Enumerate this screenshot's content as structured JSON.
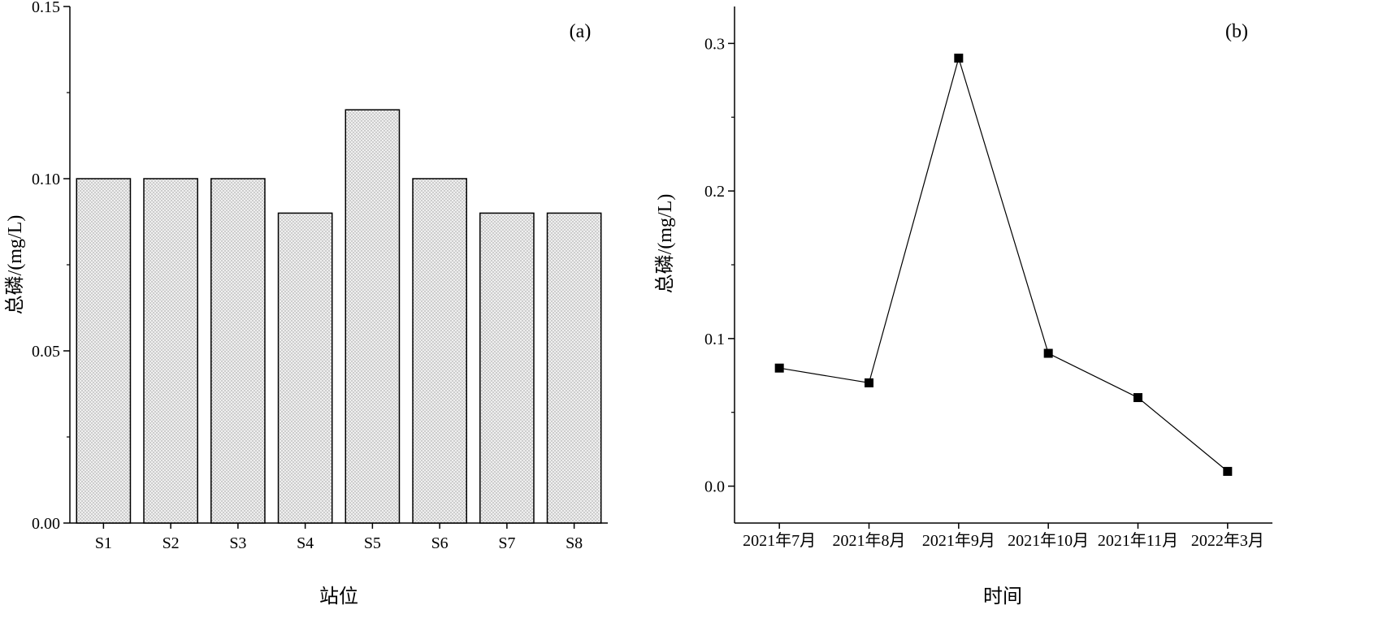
{
  "chart_data": [
    {
      "type": "bar",
      "panel_label": "(a)",
      "categories": [
        "S1",
        "S2",
        "S3",
        "S4",
        "S5",
        "S6",
        "S7",
        "S8"
      ],
      "values": [
        0.1,
        0.1,
        0.1,
        0.09,
        0.12,
        0.1,
        0.09,
        0.09
      ],
      "xlabel": "站位",
      "ylabel": "总磷/(mg/L)",
      "ylim": [
        0,
        0.15
      ],
      "yticks": [
        "0.00",
        "0.05",
        "0.10",
        "0.15"
      ],
      "bar_fill": "#e6e6e6",
      "grid": false
    },
    {
      "type": "line",
      "panel_label": "(b)",
      "categories": [
        "2021年7月",
        "2021年8月",
        "2021年9月",
        "2021年10月",
        "2021年11月",
        "2022年3月"
      ],
      "values": [
        0.08,
        0.07,
        0.29,
        0.09,
        0.06,
        0.01
      ],
      "xlabel": "时间",
      "ylabel": "总磷/(mg/L)",
      "ylim": [
        -0.025,
        0.325
      ],
      "yticks": [
        "0.0",
        "0.1",
        "0.2",
        "0.3"
      ],
      "marker": "square",
      "grid": false
    }
  ]
}
